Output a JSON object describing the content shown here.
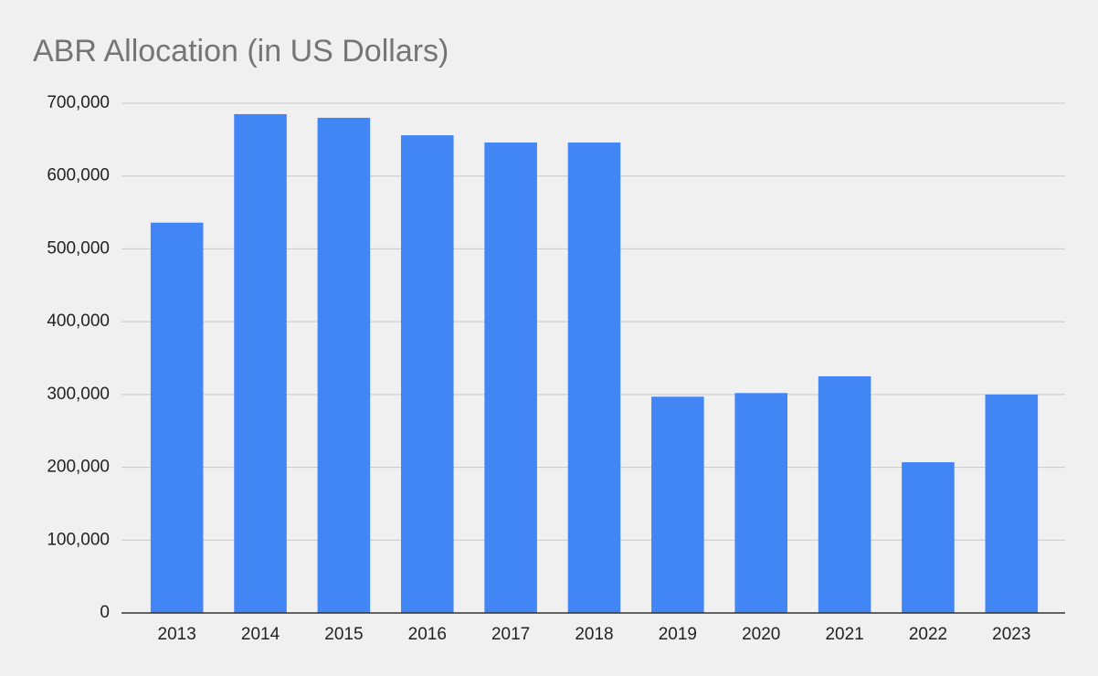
{
  "chart_data": {
    "type": "bar",
    "title": "ABR Allocation (in US Dollars)",
    "categories": [
      "2013",
      "2014",
      "2015",
      "2016",
      "2017",
      "2018",
      "2019",
      "2020",
      "2021",
      "2022",
      "2023"
    ],
    "values": [
      536000,
      685000,
      680000,
      656000,
      646000,
      646000,
      297000,
      302000,
      325000,
      207000,
      300000
    ],
    "color": "#4285f4",
    "ylim": [
      0,
      700000
    ],
    "yticks": [
      0,
      {
        "value": 100000,
        "label": "100,000"
      },
      {
        "value": 200000,
        "label": "200,000"
      },
      {
        "value": 300000,
        "label": "300,000"
      },
      {
        "value": 400000,
        "label": "400,000"
      },
      {
        "value": 500000,
        "label": "500,000"
      },
      {
        "value": 600000,
        "label": "600,000"
      },
      {
        "value": 700000,
        "label": "700,000"
      }
    ],
    "grid": true
  }
}
